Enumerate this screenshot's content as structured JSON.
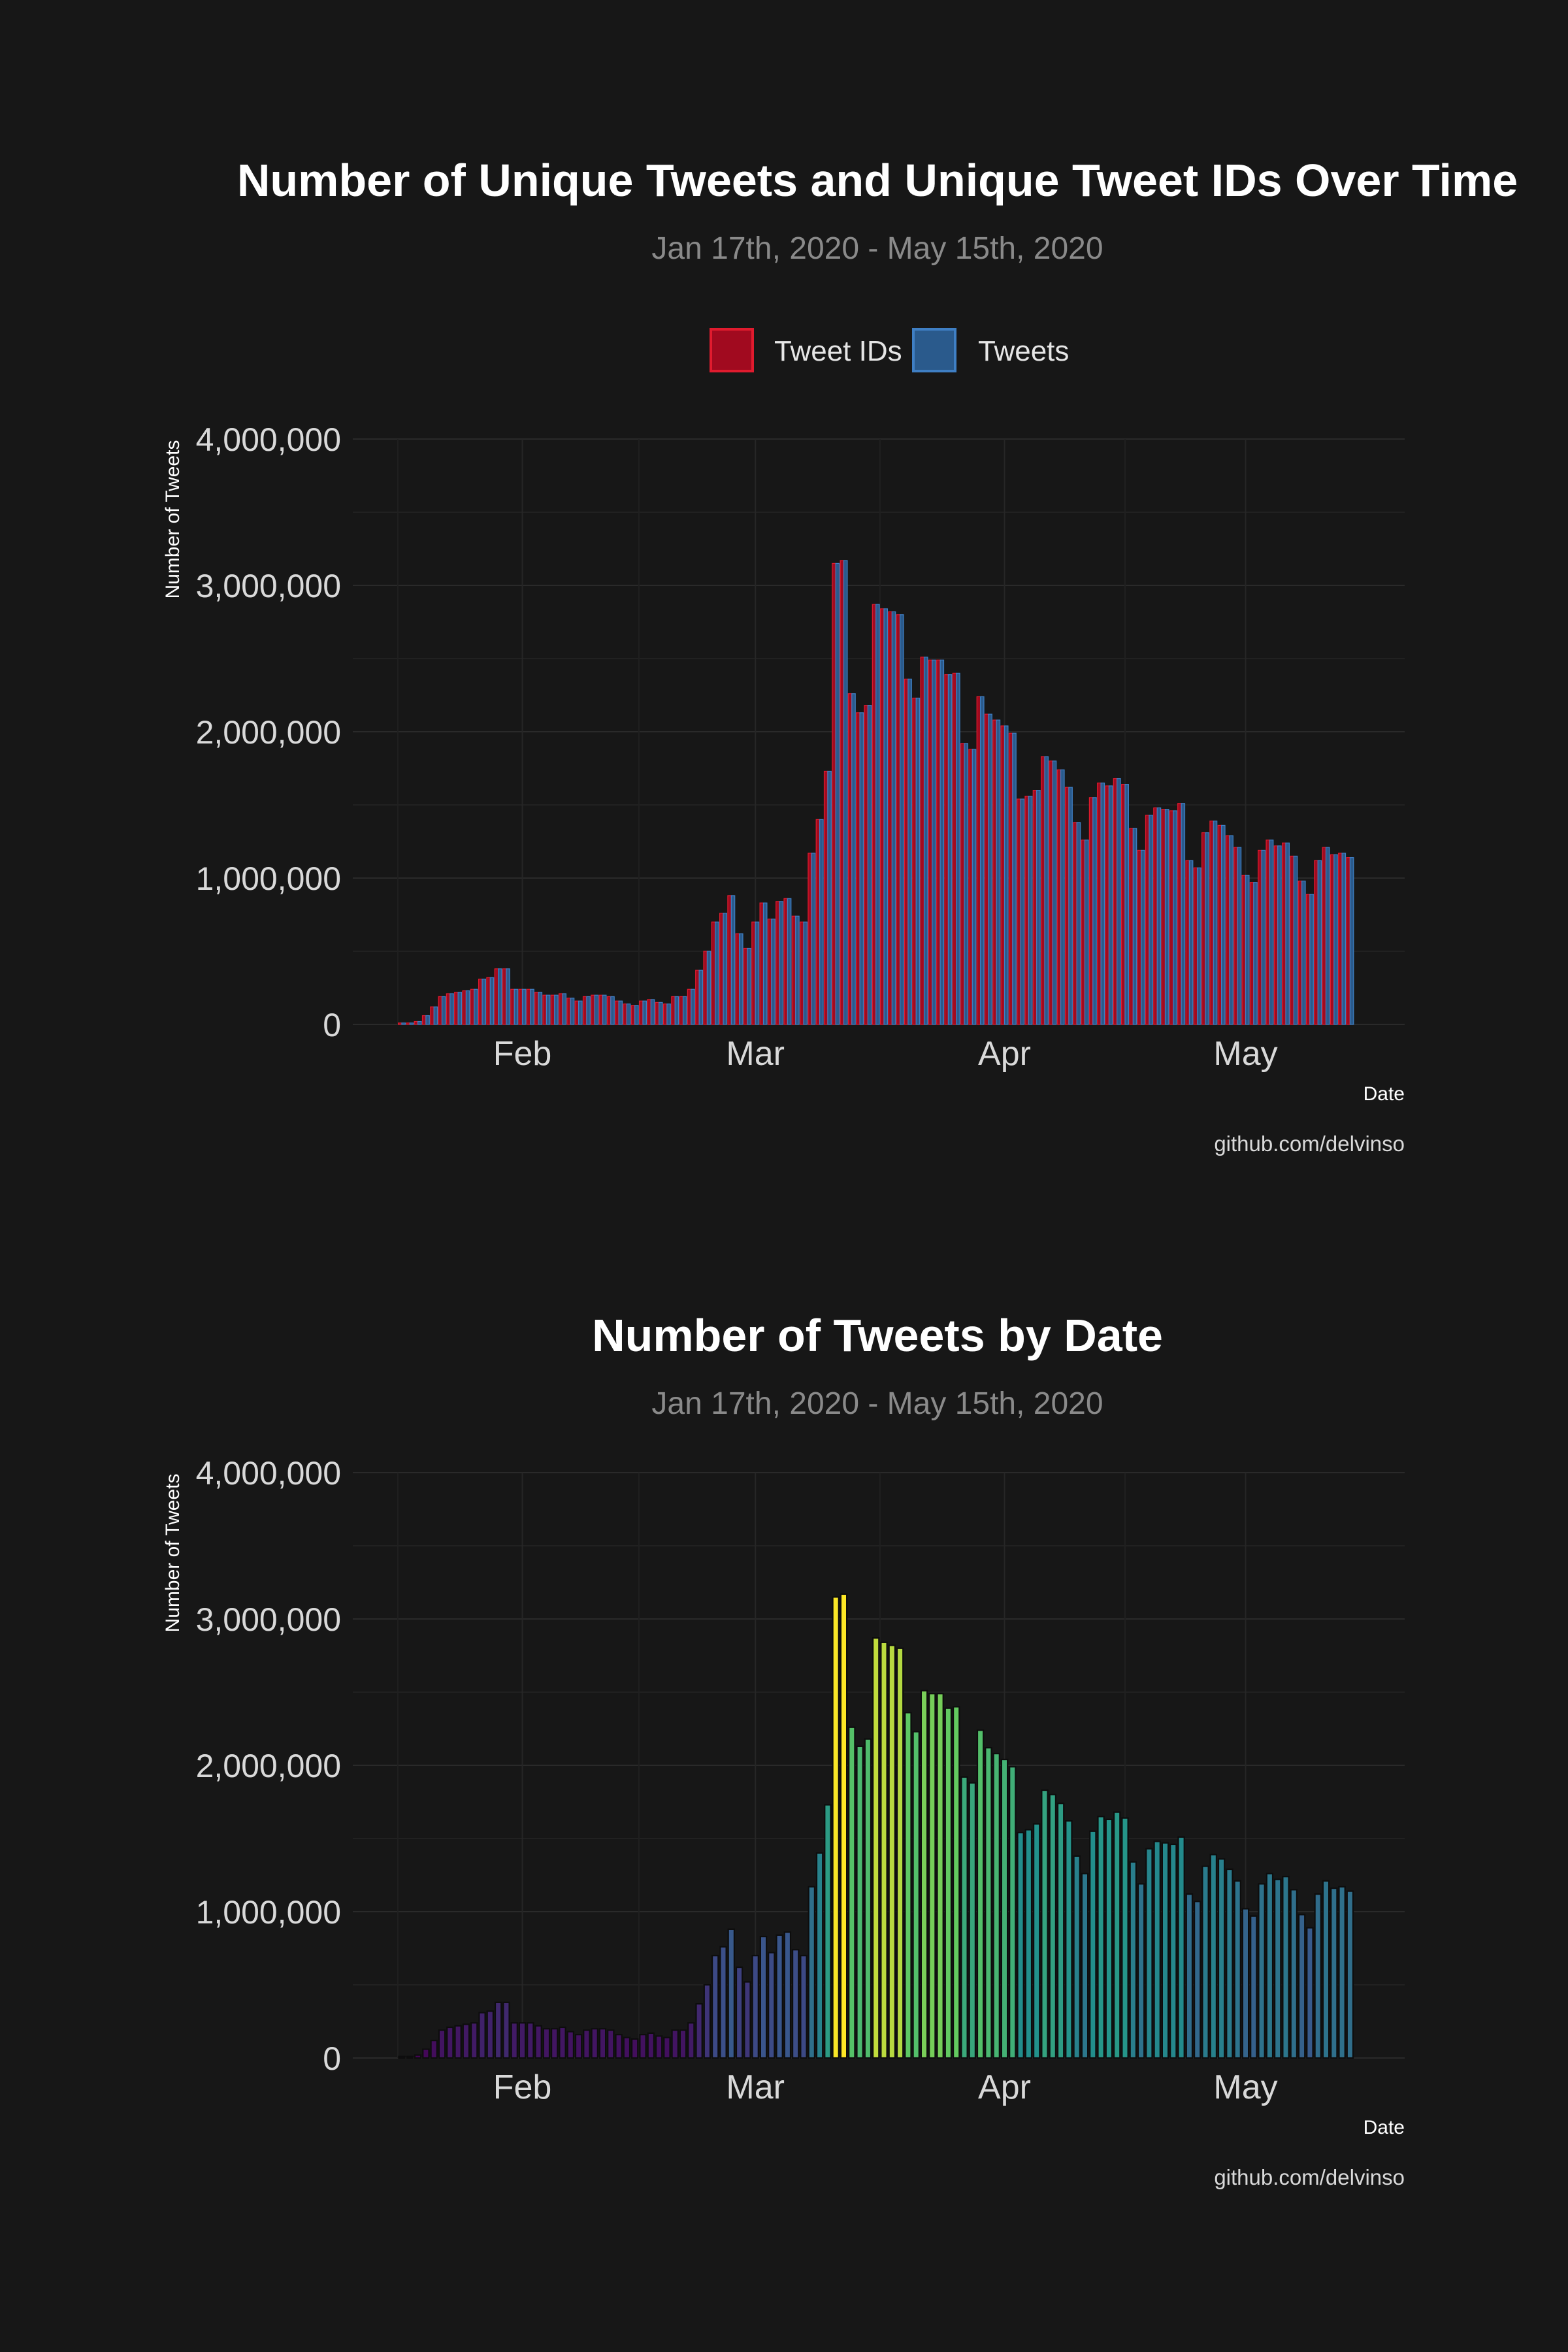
{
  "colors": {
    "background": "#171717",
    "tweet_ids": "#a10a1f",
    "tweet_ids_border": "#e01b2e",
    "tweets": "#2a5a8c",
    "tweets_border": "#3f7fc4",
    "gradient_scale": "viridis"
  },
  "chart_data": [
    {
      "type": "bar",
      "title": "Number of Unique Tweets and Unique Tweet IDs Over Time",
      "subtitle": "Jan 17th, 2020 - May 15th, 2020",
      "xlabel": "Date",
      "ylabel": "Number of Tweets",
      "caption": "github.com/delvinso",
      "legend": [
        "Tweet IDs",
        "Tweets"
      ],
      "legend_position": "top",
      "x_ticks": [
        "Feb",
        "Mar",
        "Apr",
        "May"
      ],
      "x_tick_days": [
        15,
        44,
        75,
        105
      ],
      "y_ticks": [
        "0",
        "1,000,000",
        "2,000,000",
        "3,000,000",
        "4,000,000"
      ],
      "ylim": [
        0,
        4000000
      ],
      "x_start": "2020-01-17",
      "series": [
        {
          "name": "Tweet IDs",
          "values": [
            10000,
            10000,
            20000,
            60000,
            120000,
            190000,
            210000,
            220000,
            230000,
            240000,
            310000,
            320000,
            380000,
            380000,
            240000,
            240000,
            240000,
            220000,
            200000,
            200000,
            210000,
            180000,
            160000,
            190000,
            200000,
            200000,
            190000,
            160000,
            140000,
            130000,
            160000,
            170000,
            150000,
            140000,
            190000,
            190000,
            240000,
            370000,
            500000,
            700000,
            760000,
            880000,
            620000,
            520000,
            700000,
            830000,
            720000,
            840000,
            860000,
            740000,
            700000,
            1170000,
            1400000,
            1730000,
            3150000,
            3170000,
            2260000,
            2130000,
            2180000,
            2870000,
            2840000,
            2820000,
            2800000,
            2360000,
            2230000,
            2510000,
            2490000,
            2490000,
            2390000,
            2400000,
            1920000,
            1880000,
            2240000,
            2120000,
            2080000,
            2040000,
            1990000,
            1540000,
            1560000,
            1600000,
            1830000,
            1800000,
            1740000,
            1620000,
            1380000,
            1260000,
            1550000,
            1650000,
            1630000,
            1680000,
            1640000,
            1340000,
            1190000,
            1430000,
            1480000,
            1470000,
            1460000,
            1510000,
            1120000,
            1070000,
            1310000,
            1390000,
            1360000,
            1290000,
            1210000,
            1020000,
            970000,
            1190000,
            1260000,
            1220000,
            1240000,
            1150000,
            980000,
            890000,
            1120000,
            1210000,
            1160000,
            1170000,
            1140000
          ],
          "color": "#a10a1f"
        },
        {
          "name": "Tweets",
          "values": [
            10000,
            10000,
            20000,
            60000,
            120000,
            190000,
            210000,
            220000,
            230000,
            240000,
            310000,
            320000,
            380000,
            380000,
            240000,
            240000,
            240000,
            220000,
            200000,
            200000,
            210000,
            180000,
            160000,
            190000,
            200000,
            200000,
            190000,
            160000,
            140000,
            130000,
            160000,
            170000,
            150000,
            140000,
            190000,
            190000,
            240000,
            370000,
            500000,
            700000,
            760000,
            880000,
            620000,
            520000,
            700000,
            830000,
            720000,
            840000,
            860000,
            740000,
            700000,
            1170000,
            1400000,
            1730000,
            3150000,
            3170000,
            2260000,
            2130000,
            2180000,
            2870000,
            2840000,
            2820000,
            2800000,
            2360000,
            2230000,
            2510000,
            2490000,
            2490000,
            2390000,
            2400000,
            1920000,
            1880000,
            2240000,
            2120000,
            2080000,
            2040000,
            1990000,
            1540000,
            1560000,
            1600000,
            1830000,
            1800000,
            1740000,
            1620000,
            1380000,
            1260000,
            1550000,
            1650000,
            1630000,
            1680000,
            1640000,
            1340000,
            1190000,
            1430000,
            1480000,
            1470000,
            1460000,
            1510000,
            1120000,
            1070000,
            1310000,
            1390000,
            1360000,
            1290000,
            1210000,
            1020000,
            970000,
            1190000,
            1260000,
            1220000,
            1240000,
            1150000,
            980000,
            890000,
            1120000,
            1210000,
            1160000,
            1170000,
            1140000
          ],
          "color": "#2a5a8c"
        }
      ]
    },
    {
      "type": "bar",
      "title": "Number of Tweets by Date",
      "subtitle": "Jan 17th, 2020 - May 15th, 2020",
      "xlabel": "Date",
      "ylabel": "Number of Tweets",
      "caption": "github.com/delvinso",
      "fill": "gradient by value",
      "x_ticks": [
        "Feb",
        "Mar",
        "Apr",
        "May"
      ],
      "x_tick_days": [
        15,
        44,
        75,
        105
      ],
      "y_ticks": [
        "0",
        "1,000,000",
        "2,000,000",
        "3,000,000",
        "4,000,000"
      ],
      "ylim": [
        0,
        4000000
      ],
      "x_start": "2020-01-17",
      "values": [
        10000,
        10000,
        20000,
        60000,
        120000,
        190000,
        210000,
        220000,
        230000,
        240000,
        310000,
        320000,
        380000,
        380000,
        240000,
        240000,
        240000,
        220000,
        200000,
        200000,
        210000,
        180000,
        160000,
        190000,
        200000,
        200000,
        190000,
        160000,
        140000,
        130000,
        160000,
        170000,
        150000,
        140000,
        190000,
        190000,
        240000,
        370000,
        500000,
        700000,
        760000,
        880000,
        620000,
        520000,
        700000,
        830000,
        720000,
        840000,
        860000,
        740000,
        700000,
        1170000,
        1400000,
        1730000,
        3150000,
        3170000,
        2260000,
        2130000,
        2180000,
        2870000,
        2840000,
        2820000,
        2800000,
        2360000,
        2230000,
        2510000,
        2490000,
        2490000,
        2390000,
        2400000,
        1920000,
        1880000,
        2240000,
        2120000,
        2080000,
        2040000,
        1990000,
        1540000,
        1560000,
        1600000,
        1830000,
        1800000,
        1740000,
        1620000,
        1380000,
        1260000,
        1550000,
        1650000,
        1630000,
        1680000,
        1640000,
        1340000,
        1190000,
        1430000,
        1480000,
        1470000,
        1460000,
        1510000,
        1120000,
        1070000,
        1310000,
        1390000,
        1360000,
        1290000,
        1210000,
        1020000,
        970000,
        1190000,
        1260000,
        1220000,
        1240000,
        1150000,
        980000,
        890000,
        1120000,
        1210000,
        1160000,
        1170000,
        1140000
      ]
    }
  ]
}
